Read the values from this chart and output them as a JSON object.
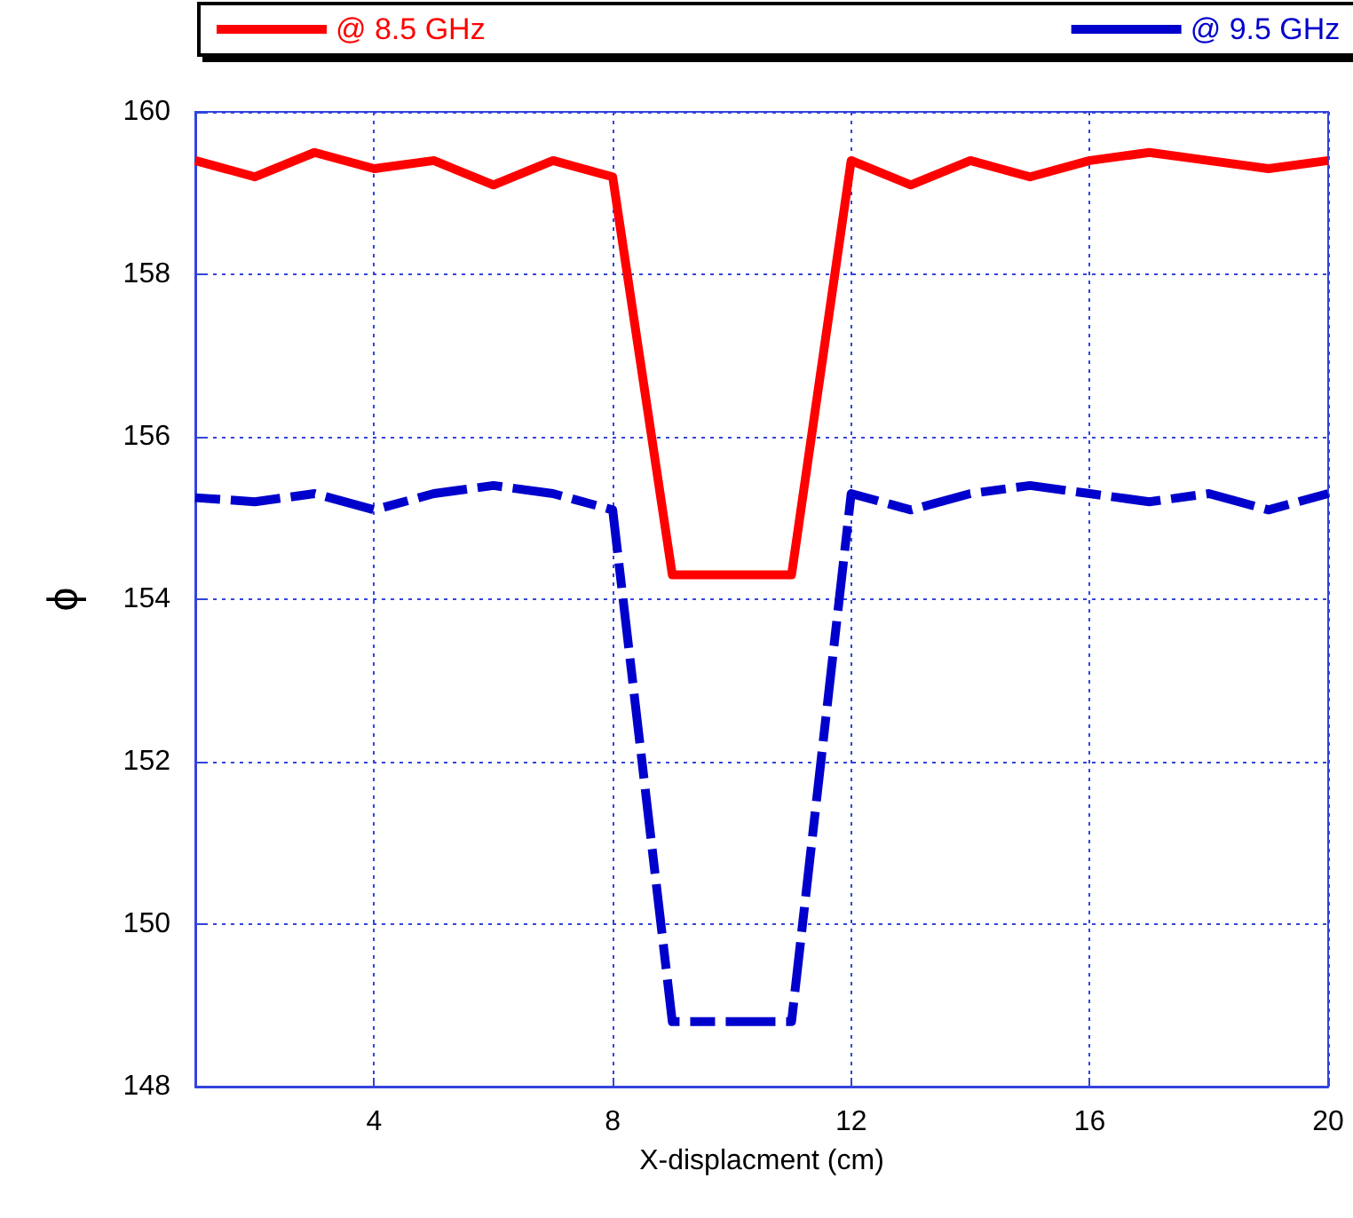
{
  "chart_data": {
    "type": "line",
    "xlabel": "X-displacment (cm)",
    "ylabel": "ϕ",
    "x": [
      1,
      2,
      3,
      4,
      5,
      6,
      7,
      8,
      9,
      10,
      11,
      12,
      13,
      14,
      15,
      16,
      17,
      18,
      19,
      20
    ],
    "series": [
      {
        "name": "@ 8.5 GHz",
        "color": "#ff0000",
        "line_style": "solid",
        "values": [
          159.4,
          159.2,
          159.5,
          159.3,
          159.4,
          159.1,
          159.4,
          159.2,
          154.3,
          154.3,
          154.3,
          159.4,
          159.1,
          159.4,
          159.2,
          159.4,
          159.5,
          159.4,
          159.3,
          159.4
        ]
      },
      {
        "name": "@ 9.5 GHz",
        "color": "#0000cc",
        "line_style": "dashed",
        "values": [
          155.25,
          155.2,
          155.3,
          155.1,
          155.3,
          155.4,
          155.3,
          155.1,
          148.8,
          148.8,
          148.8,
          155.3,
          155.1,
          155.3,
          155.4,
          155.3,
          155.2,
          155.3,
          155.1,
          155.3
        ]
      }
    ],
    "xlim": [
      1,
      20
    ],
    "xticks": [
      4,
      8,
      12,
      16,
      20
    ],
    "ylim": [
      148,
      160
    ],
    "yticks": [
      148,
      150,
      152,
      154,
      156,
      158,
      160
    ],
    "grid": true,
    "legend": "top",
    "marker": "none"
  }
}
